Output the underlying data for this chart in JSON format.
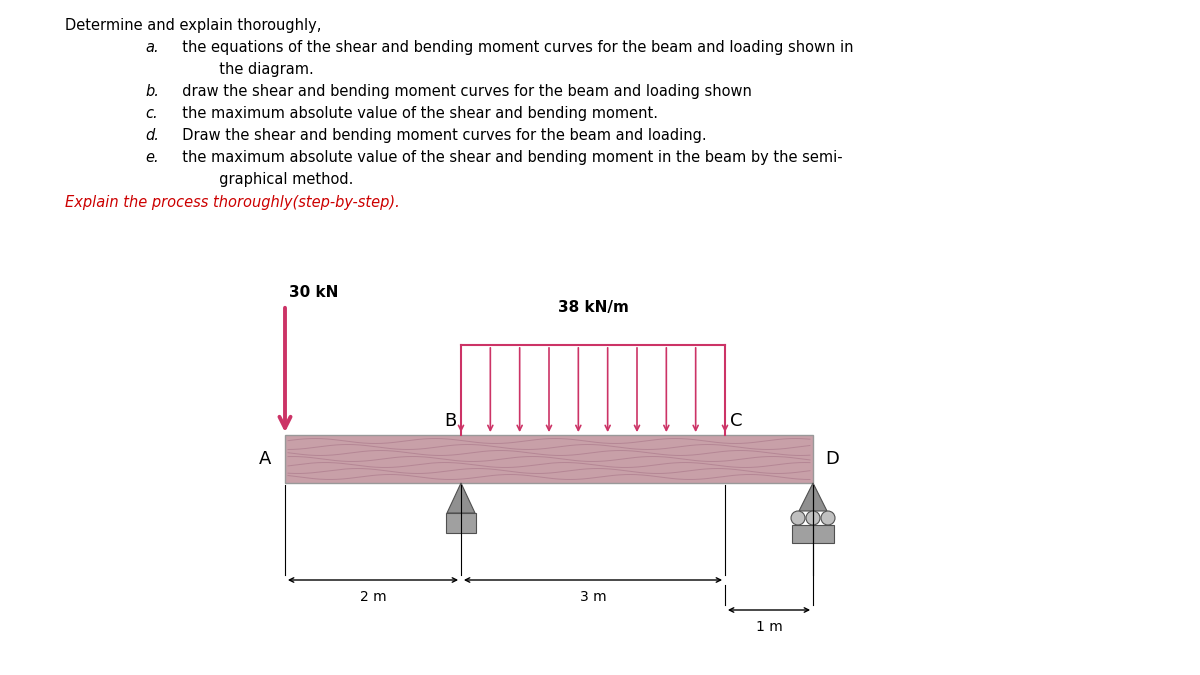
{
  "bg_color": "#ffffff",
  "text_color": "#000000",
  "red_text_color": "#cc0000",
  "beam_color": "#c8a0a8",
  "beam_wave_color": "#b08090",
  "beam_border_color": "#888888",
  "arrow_color": "#cc3366",
  "support_color": "#808080",
  "support_dark": "#606060",
  "title_line0": "Determine and explain thoroughly,",
  "title_lines": [
    [
      "a.",
      "  the equations of the shear and bending moment curves for the beam and loading shown in"
    ],
    [
      "",
      "          the diagram."
    ],
    [
      "b.",
      "  draw the shear and bending moment curves for the beam and loading shown"
    ],
    [
      "c.",
      "  the maximum absolute value of the shear and bending moment."
    ],
    [
      "d.",
      "  Draw the shear and bending moment curves for the beam and loading."
    ],
    [
      "e.",
      "  the maximum absolute value of the shear and bending moment in the beam by the semi-"
    ],
    [
      "",
      "          graphical method."
    ]
  ],
  "italic_line": "Explain the process thoroughly(step-by-step).",
  "load_label": "30 kN",
  "dist_load_label": "38 kN/m",
  "label_A": "A",
  "label_B": "B",
  "label_C": "C",
  "label_D": "D",
  "dim_AB": "2 m",
  "dim_BC": "3 m",
  "dim_CD": "1 m"
}
